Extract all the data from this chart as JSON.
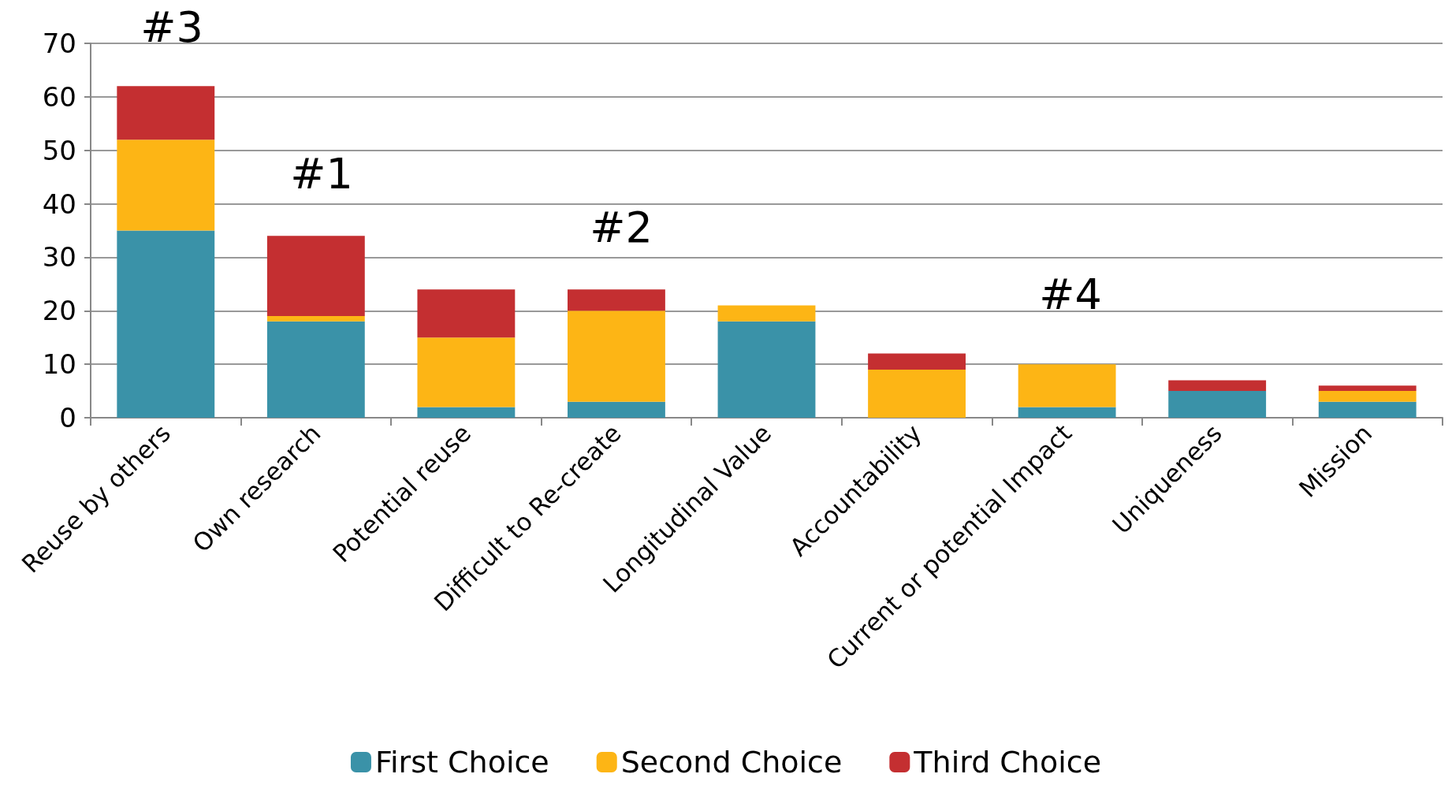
{
  "chart_data": {
    "type": "bar",
    "stacked": true,
    "categories": [
      "Reuse by others",
      "Own research",
      "Potential reuse",
      "Difficult to Re-create",
      "Longitudinal Value",
      "Accountability",
      "Current or potential Impact",
      "Uniqueness",
      "Mission"
    ],
    "series": [
      {
        "name": "First Choice",
        "color": "#3a92a8",
        "values": [
          35,
          18,
          2,
          3,
          18,
          0,
          2,
          5,
          3
        ]
      },
      {
        "name": "Second Choice",
        "color": "#fdb515",
        "values": [
          17,
          1,
          13,
          17,
          3,
          9,
          8,
          0,
          2
        ]
      },
      {
        "name": "Third Choice",
        "color": "#c42f31",
        "values": [
          10,
          15,
          9,
          4,
          0,
          3,
          0,
          2,
          1
        ]
      }
    ],
    "ylim": [
      0,
      70
    ],
    "yticks": [
      0,
      10,
      20,
      30,
      40,
      50,
      60,
      70
    ],
    "grid": "y",
    "legend": "bottom",
    "annotations": [
      "#3",
      "#1",
      "#2",
      "#4"
    ]
  }
}
